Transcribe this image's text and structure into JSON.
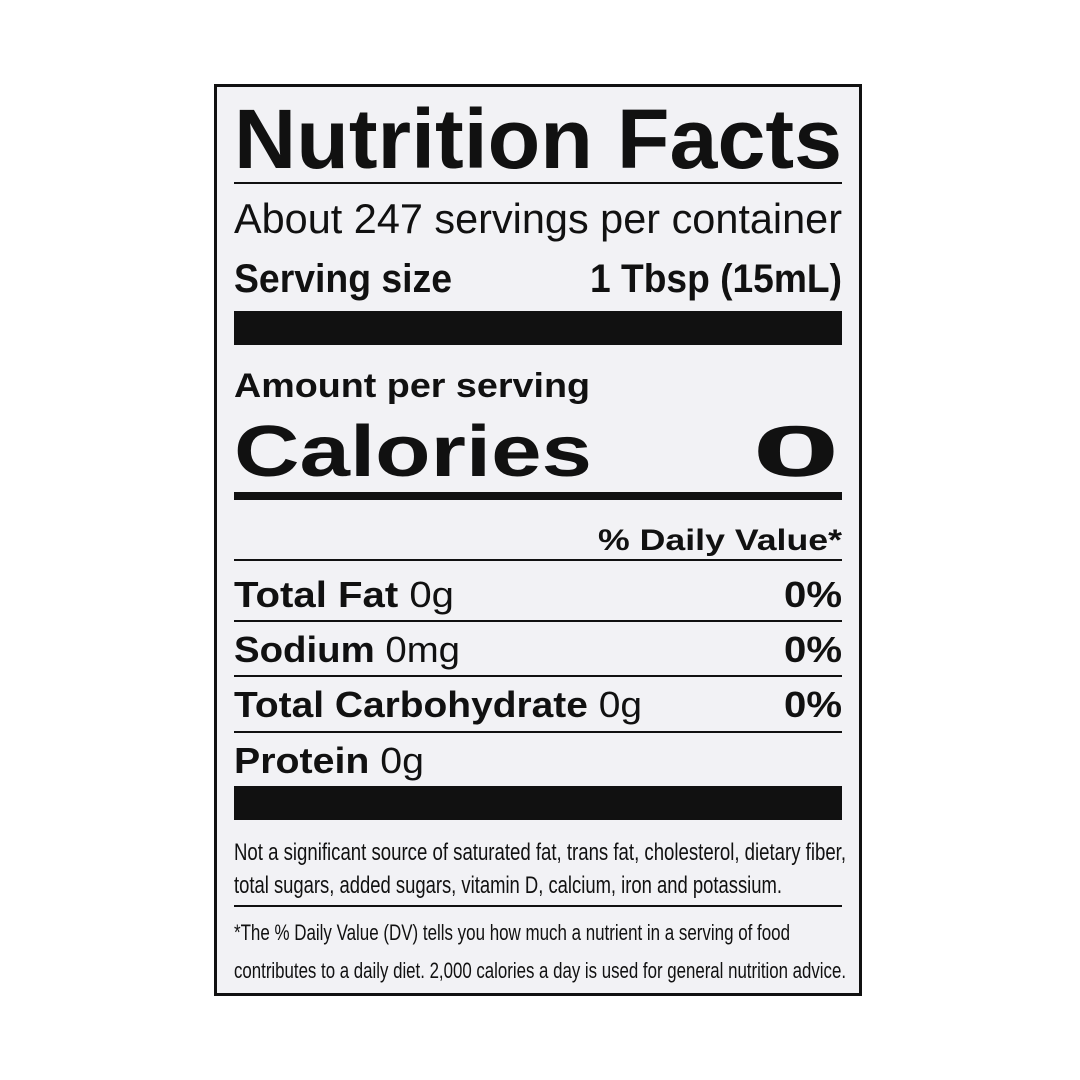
{
  "title": "Nutrition Facts",
  "servings_per_container": "About 247 servings per container",
  "serving_size": {
    "label": "Serving size",
    "value": "1 Tbsp (15mL)"
  },
  "amount_per_serving": "Amount per serving",
  "calories": {
    "label": "Calories",
    "value": "0"
  },
  "daily_value_header": "% Daily Value*",
  "nutrients": [
    {
      "name": "Total Fat",
      "amount": "0g",
      "dv": "0%"
    },
    {
      "name": "Sodium",
      "amount": "0mg",
      "dv": "0%"
    },
    {
      "name": "Total Carbohydrate",
      "amount": "0g",
      "dv": "0%"
    },
    {
      "name": "Protein",
      "amount": "0g"
    }
  ],
  "footnote": [
    "Not a significant source of saturated fat, trans fat, cholesterol, dietary fiber,",
    "total sugars, added sugars, vitamin D, calcium, iron and potassium."
  ],
  "dv_note": [
    "*The % Daily Value (DV) tells you how much a nutrient in a serving of food",
    "contributes to a daily diet. 2,000 calories a day is used for general nutrition advice."
  ]
}
